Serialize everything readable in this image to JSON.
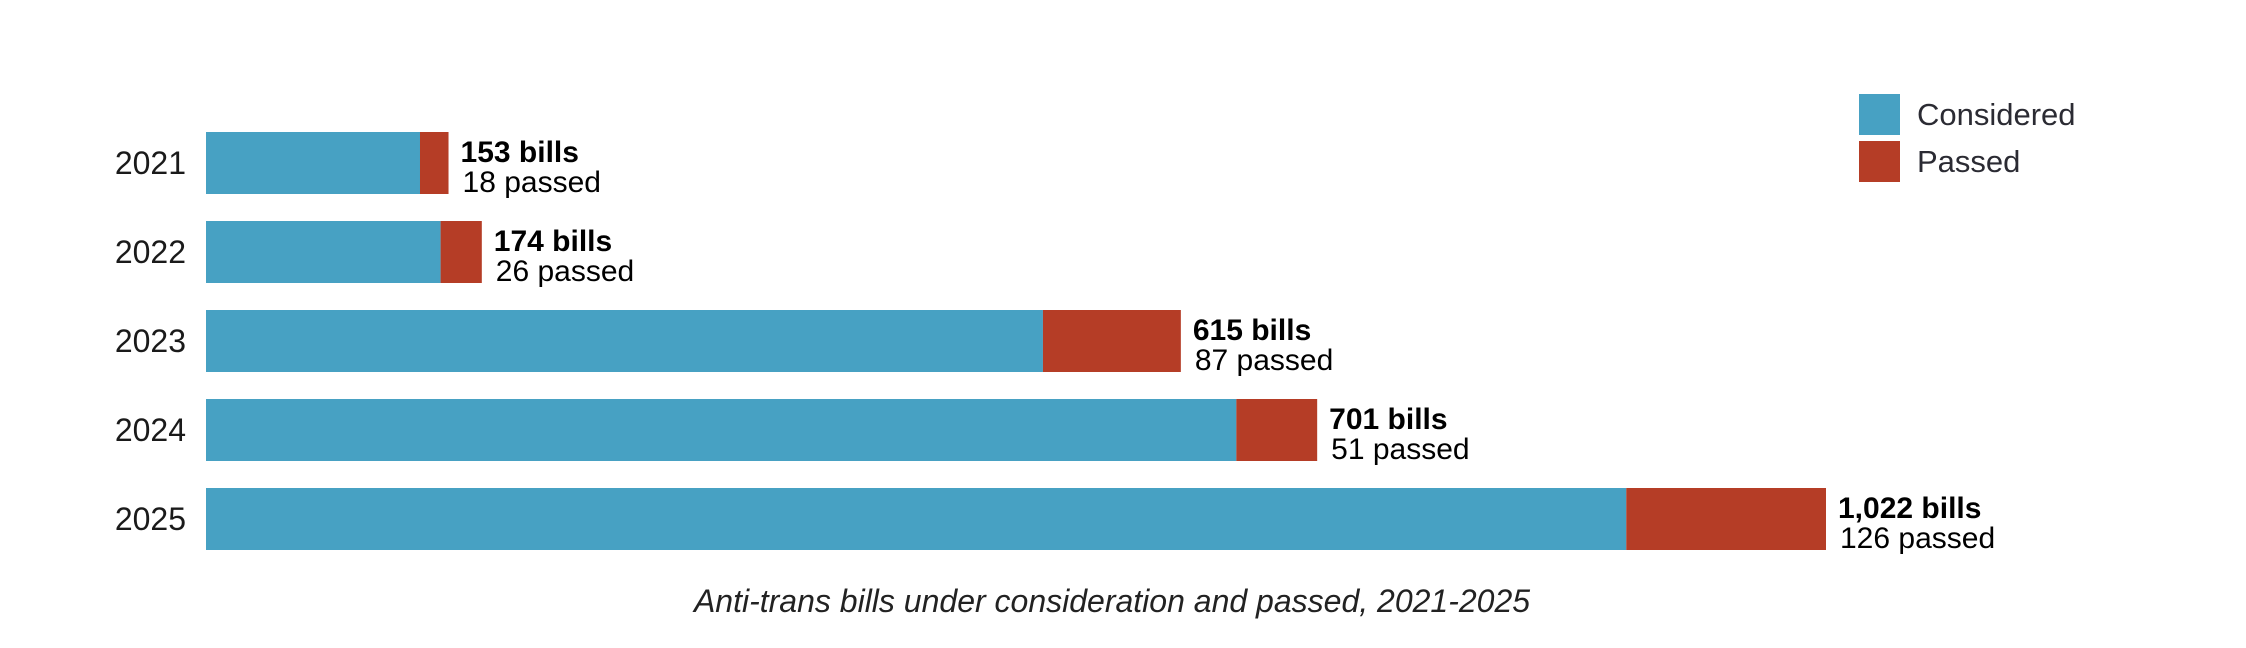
{
  "chart_data": {
    "type": "bar",
    "orientation": "horizontal",
    "stacked": true,
    "title": "Anti-trans bills under consideration and passed, 2021-2025",
    "categories": [
      "2021",
      "2022",
      "2023",
      "2024",
      "2025"
    ],
    "series": [
      {
        "name": "Considered",
        "values": [
          135,
          148,
          528,
          650,
          896
        ],
        "color": "#47a1c3"
      },
      {
        "name": "Passed",
        "values": [
          18,
          26,
          87,
          51,
          126
        ],
        "color": "#b53d26"
      }
    ],
    "totals": [
      153,
      174,
      615,
      701,
      1022
    ],
    "total_labels": [
      "153 bills",
      "174 bills",
      "615 bills",
      "701 bills",
      "1,022 bills"
    ],
    "passed_labels": [
      "18 passed",
      "26 passed",
      "87 passed",
      "51 passed",
      "126 passed"
    ],
    "xlim": [
      0,
      1022
    ],
    "grid": false,
    "legend_position": "top-right"
  }
}
